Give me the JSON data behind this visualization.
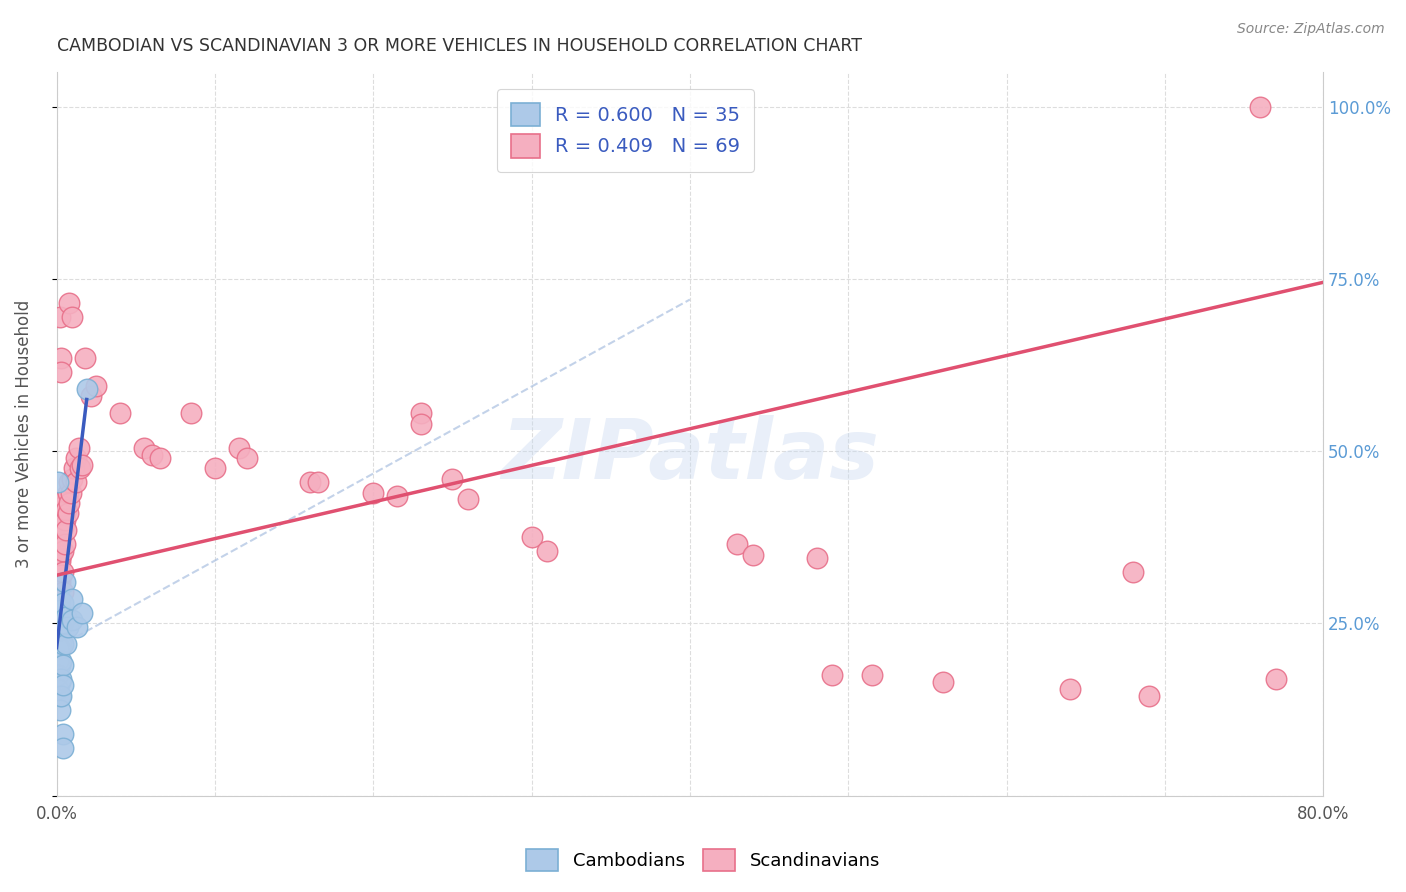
{
  "title": "CAMBODIAN VS SCANDINAVIAN 3 OR MORE VEHICLES IN HOUSEHOLD CORRELATION CHART",
  "source": "Source: ZipAtlas.com",
  "ylabel": "3 or more Vehicles in Household",
  "x_min": 0.0,
  "x_max": 0.8,
  "y_min": 0.0,
  "y_max": 1.05,
  "x_ticks": [
    0.0,
    0.1,
    0.2,
    0.3,
    0.4,
    0.5,
    0.6,
    0.7,
    0.8
  ],
  "y_ticks": [
    0.0,
    0.25,
    0.5,
    0.75,
    1.0
  ],
  "y_tick_labels_right": [
    "",
    "25.0%",
    "50.0%",
    "75.0%",
    "100.0%"
  ],
  "cambodian_color": "#adc9e8",
  "scandinavian_color": "#f5afc0",
  "cambodian_edge": "#7bafd4",
  "scandinavian_edge": "#e8708a",
  "legend_cambodian_R": "0.600",
  "legend_cambodian_N": "35",
  "legend_scandinavian_R": "0.409",
  "legend_scandinavian_N": "69",
  "watermark_text": "ZIPatlas",
  "cambodian_scatter": [
    [
      0.001,
      0.455
    ],
    [
      0.001,
      0.215
    ],
    [
      0.001,
      0.195
    ],
    [
      0.001,
      0.175
    ],
    [
      0.001,
      0.155
    ],
    [
      0.002,
      0.285
    ],
    [
      0.002,
      0.265
    ],
    [
      0.002,
      0.24
    ],
    [
      0.002,
      0.215
    ],
    [
      0.002,
      0.19
    ],
    [
      0.002,
      0.165
    ],
    [
      0.002,
      0.145
    ],
    [
      0.002,
      0.125
    ],
    [
      0.003,
      0.27
    ],
    [
      0.003,
      0.245
    ],
    [
      0.003,
      0.22
    ],
    [
      0.003,
      0.195
    ],
    [
      0.003,
      0.17
    ],
    [
      0.003,
      0.145
    ],
    [
      0.004,
      0.28
    ],
    [
      0.004,
      0.25
    ],
    [
      0.004,
      0.22
    ],
    [
      0.004,
      0.19
    ],
    [
      0.004,
      0.16
    ],
    [
      0.005,
      0.31
    ],
    [
      0.006,
      0.26
    ],
    [
      0.006,
      0.22
    ],
    [
      0.007,
      0.245
    ],
    [
      0.01,
      0.285
    ],
    [
      0.01,
      0.255
    ],
    [
      0.013,
      0.245
    ],
    [
      0.016,
      0.265
    ],
    [
      0.019,
      0.59
    ],
    [
      0.004,
      0.09
    ],
    [
      0.004,
      0.07
    ]
  ],
  "scandinavian_scatter": [
    [
      0.001,
      0.37
    ],
    [
      0.001,
      0.345
    ],
    [
      0.001,
      0.315
    ],
    [
      0.002,
      0.39
    ],
    [
      0.002,
      0.365
    ],
    [
      0.002,
      0.34
    ],
    [
      0.002,
      0.31
    ],
    [
      0.003,
      0.41
    ],
    [
      0.003,
      0.38
    ],
    [
      0.003,
      0.35
    ],
    [
      0.003,
      0.32
    ],
    [
      0.004,
      0.42
    ],
    [
      0.004,
      0.39
    ],
    [
      0.004,
      0.355
    ],
    [
      0.004,
      0.325
    ],
    [
      0.004,
      0.295
    ],
    [
      0.005,
      0.43
    ],
    [
      0.005,
      0.4
    ],
    [
      0.005,
      0.365
    ],
    [
      0.006,
      0.415
    ],
    [
      0.006,
      0.385
    ],
    [
      0.007,
      0.44
    ],
    [
      0.007,
      0.41
    ],
    [
      0.008,
      0.455
    ],
    [
      0.008,
      0.425
    ],
    [
      0.009,
      0.44
    ],
    [
      0.01,
      0.46
    ],
    [
      0.011,
      0.475
    ],
    [
      0.012,
      0.49
    ],
    [
      0.012,
      0.455
    ],
    [
      0.014,
      0.505
    ],
    [
      0.015,
      0.475
    ],
    [
      0.016,
      0.48
    ],
    [
      0.002,
      0.695
    ],
    [
      0.003,
      0.635
    ],
    [
      0.003,
      0.615
    ],
    [
      0.008,
      0.715
    ],
    [
      0.01,
      0.695
    ],
    [
      0.018,
      0.635
    ],
    [
      0.022,
      0.58
    ],
    [
      0.025,
      0.595
    ],
    [
      0.04,
      0.555
    ],
    [
      0.055,
      0.505
    ],
    [
      0.06,
      0.495
    ],
    [
      0.065,
      0.49
    ],
    [
      0.085,
      0.555
    ],
    [
      0.1,
      0.475
    ],
    [
      0.115,
      0.505
    ],
    [
      0.12,
      0.49
    ],
    [
      0.16,
      0.455
    ],
    [
      0.165,
      0.455
    ],
    [
      0.2,
      0.44
    ],
    [
      0.215,
      0.435
    ],
    [
      0.23,
      0.555
    ],
    [
      0.23,
      0.54
    ],
    [
      0.25,
      0.46
    ],
    [
      0.26,
      0.43
    ],
    [
      0.3,
      0.375
    ],
    [
      0.31,
      0.355
    ],
    [
      0.43,
      0.365
    ],
    [
      0.44,
      0.35
    ],
    [
      0.48,
      0.345
    ],
    [
      0.49,
      0.175
    ],
    [
      0.515,
      0.175
    ],
    [
      0.56,
      0.165
    ],
    [
      0.64,
      0.155
    ],
    [
      0.68,
      0.325
    ],
    [
      0.69,
      0.145
    ],
    [
      0.76,
      1.0
    ],
    [
      0.77,
      0.17
    ]
  ],
  "cambodian_line_x": [
    0.0,
    0.019
  ],
  "cambodian_line_y": [
    0.215,
    0.575
  ],
  "scandinavian_line_x": [
    0.0,
    0.8
  ],
  "scandinavian_line_y": [
    0.32,
    0.745
  ],
  "diagonal_line_x": [
    0.0,
    0.4
  ],
  "diagonal_line_y": [
    0.215,
    0.72
  ],
  "bg_color": "#ffffff",
  "grid_color": "#dddddd",
  "title_color": "#333333",
  "right_tick_color": "#5b9bd5",
  "blue_line_color": "#3a5bbf",
  "pink_line_color": "#e05070",
  "diag_line_color": "#aac0e0"
}
